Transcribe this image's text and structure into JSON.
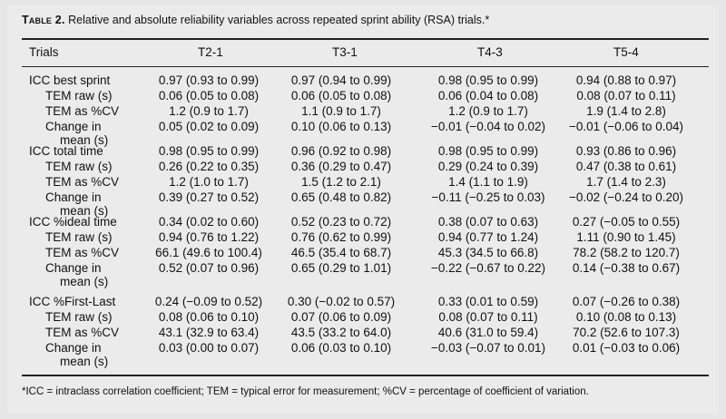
{
  "caption": {
    "label": "Table 2.",
    "text": " Relative and absolute reliability variables across repeated sprint ability (RSA) trials.*"
  },
  "headers": [
    "Trials",
    "T2-1",
    "T3-1",
    "T4-3",
    "T5-4"
  ],
  "sections": [
    {
      "rows": [
        {
          "label": "ICC best sprint",
          "cells": [
            "0.97 (0.93 to 0.99)",
            "0.97 (0.94 to 0.99)",
            "0.98 (0.95 to 0.99)",
            "0.94 (0.88 to 0.97)"
          ]
        },
        {
          "label": "TEM raw (s)",
          "cells": [
            "0.06 (0.05 to 0.08)",
            "0.06 (0.05 to 0.08)",
            "0.06 (0.04 to 0.08)",
            "0.08 (0.07 to 0.11)"
          ]
        },
        {
          "label": "TEM as %CV",
          "cells": [
            "1.2 (0.9 to 1.7)",
            "1.1 (0.9 to 1.7)",
            "1.2 (0.9 to 1.7)",
            "1.9 (1.4 to 2.8)"
          ]
        },
        {
          "label": "Change in",
          "label2": "mean (s)",
          "cells": [
            "0.05 (0.02 to 0.09)",
            "0.10 (0.06 to 0.13)",
            "−0.01 (−0.04 to 0.02)",
            "−0.01 (−0.06 to 0.04)"
          ]
        }
      ]
    },
    {
      "rows": [
        {
          "label": "ICC total time",
          "cells": [
            "0.98 (0.95 to 0.99)",
            "0.96 (0.92 to 0.98)",
            "0.98 (0.95 to 0.99)",
            "0.93 (0.86 to 0.96)"
          ]
        },
        {
          "label": "TEM raw (s)",
          "cells": [
            "0.26 (0.22 to 0.35)",
            "0.36 (0.29 to 0.47)",
            "0.29 (0.24 to 0.39)",
            "0.47 (0.38 to 0.61)"
          ]
        },
        {
          "label": "TEM as %CV",
          "cells": [
            "1.2 (1.0 to 1.7)",
            "1.5 (1.2 to 2.1)",
            "1.4 (1.1 to 1.9)",
            "1.7 (1.4 to 2.3)"
          ]
        },
        {
          "label": "Change in",
          "label2": "mean (s)",
          "cells": [
            "0.39 (0.27 to 0.52)",
            "0.65 (0.48 to 0.82)",
            "−0.11 (−0.25 to 0.03)",
            "−0.02 (−0.24 to 0.20)"
          ]
        }
      ]
    },
    {
      "rows": [
        {
          "label": "ICC %ideal time",
          "cells": [
            "0.34 (0.02 to 0.60)",
            "0.52 (0.23 to 0.72)",
            "0.38 (0.07 to 0.63)",
            "0.27 (−0.05 to 0.55)"
          ]
        },
        {
          "label": "TEM raw (s)",
          "cells": [
            "0.94 (0.76 to 1.22)",
            "0.76 (0.62 to 0.99)",
            "0.94 (0.77 to 1.24)",
            "1.11 (0.90 to 1.45)"
          ]
        },
        {
          "label": "TEM as %CV",
          "cells": [
            "66.1 (49.6 to 100.4)",
            "46.5 (35.4 to 68.7)",
            "45.3 (34.5 to 66.8)",
            "78.2 (58.2 to 120.7)"
          ]
        },
        {
          "label": "Change in",
          "label2": "mean (s)",
          "cells": [
            "0.52 (0.07 to 0.96)",
            "0.65 (0.29 to 1.01)",
            "−0.22 (−0.67 to 0.22)",
            "0.14 (−0.38 to 0.67)"
          ]
        }
      ]
    },
    {
      "rows": [
        {
          "label": "ICC %First-Last",
          "cells": [
            "0.24 (−0.09 to 0.52)",
            "0.30 (−0.02 to 0.57)",
            "0.33 (0.01 to 0.59)",
            "0.07 (−0.26 to 0.38)"
          ]
        },
        {
          "label": "TEM raw (s)",
          "cells": [
            "0.08 (0.06 to 0.10)",
            "0.07 (0.06 to 0.09)",
            "0.08 (0.07 to 0.11)",
            "0.10 (0.08 to 0.13)"
          ]
        },
        {
          "label": "TEM as %CV",
          "cells": [
            "43.1 (32.9 to 63.4)",
            "43.5 (33.2 to 64.0)",
            "40.6 (31.0 to 59.4)",
            "70.2 (52.6 to 107.3)"
          ]
        },
        {
          "label": "Change in",
          "label2": "mean (s)",
          "cells": [
            "0.03 (0.00 to 0.07)",
            "0.06 (0.03 to 0.10)",
            "−0.03 (−0.07 to 0.01)",
            "0.01 (−0.03 to 0.06)"
          ]
        }
      ]
    }
  ],
  "footnote": "*ICC = intraclass correlation coefficient; TEM = typical error for measurement; %CV = percentage of coefficient of variation."
}
